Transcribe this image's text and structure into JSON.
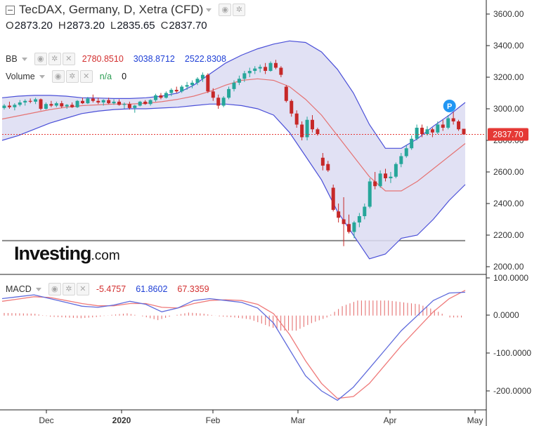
{
  "header": {
    "title": "TecDAX, Germany, D, Xetra (CFD)",
    "ohlc": [
      {
        "key": "O",
        "value": "2873.20"
      },
      {
        "key": "H",
        "value": "2873.20"
      },
      {
        "key": "L",
        "value": "2835.65"
      },
      {
        "key": "C",
        "value": "2837.70"
      }
    ]
  },
  "indicators": {
    "bb": {
      "name": "BB",
      "v1": "2780.8510",
      "v2": "3038.8712",
      "v3": "2522.8308"
    },
    "volume": {
      "name": "Volume",
      "v1": "n/a",
      "v2": "0"
    },
    "macd": {
      "name": "MACD",
      "v1": "-5.4757",
      "v2": "61.8602",
      "v3": "67.3359"
    }
  },
  "logo": {
    "main": "Investing",
    "suffix": ".com"
  },
  "price_badge": "2837.70",
  "marker_label": "P",
  "colors": {
    "up": "#26a69a",
    "down": "#c62828",
    "bb_band": "#4a4fd8",
    "bb_fill": "#dcdcf2",
    "bb_mid": "#e57373",
    "macd_line": "#5f6bdc",
    "signal_line": "#ef7a7a",
    "hist": "#e57373",
    "last_price": "#e53935",
    "marker": "#2196f3"
  },
  "chart_data": [
    {
      "type": "candlestick",
      "title": "TecDAX, Germany, D, Xetra (CFD)",
      "x_tick_labels": [
        "Dec",
        "2020",
        "Feb",
        "Mar",
        "Apr",
        "May"
      ],
      "y_tick_labels": [
        "3600.00",
        "3400.00",
        "3200.00",
        "3000.00",
        "2800.00",
        "2600.00",
        "2400.00",
        "2200.00",
        "2000.00"
      ],
      "ylim": [
        1985,
        3650
      ],
      "last_price": 2837.7,
      "support_level": 2165,
      "grid": false,
      "candles": [
        {
          "o": 3005,
          "h": 3030,
          "l": 2995,
          "c": 3020
        },
        {
          "o": 3020,
          "h": 3045,
          "l": 3000,
          "c": 3010
        },
        {
          "o": 3010,
          "h": 3035,
          "l": 2990,
          "c": 3025
        },
        {
          "o": 3025,
          "h": 3055,
          "l": 3015,
          "c": 3040
        },
        {
          "o": 3040,
          "h": 3060,
          "l": 3020,
          "c": 3050
        },
        {
          "o": 3050,
          "h": 3065,
          "l": 3035,
          "c": 3045
        },
        {
          "o": 3045,
          "h": 3070,
          "l": 3030,
          "c": 3060
        },
        {
          "o": 3060,
          "h": 3065,
          "l": 2990,
          "c": 3000
        },
        {
          "o": 3000,
          "h": 3040,
          "l": 2995,
          "c": 3030
        },
        {
          "o": 3030,
          "h": 3050,
          "l": 3010,
          "c": 3020
        },
        {
          "o": 3020,
          "h": 3045,
          "l": 3010,
          "c": 3035
        },
        {
          "o": 3035,
          "h": 3050,
          "l": 3005,
          "c": 3015
        },
        {
          "o": 3015,
          "h": 3030,
          "l": 3000,
          "c": 3025
        },
        {
          "o": 3025,
          "h": 3040,
          "l": 3005,
          "c": 3010
        },
        {
          "o": 3010,
          "h": 3055,
          "l": 3005,
          "c": 3050
        },
        {
          "o": 3050,
          "h": 3070,
          "l": 3030,
          "c": 3035
        },
        {
          "o": 3035,
          "h": 3075,
          "l": 3030,
          "c": 3065
        },
        {
          "o": 3065,
          "h": 3090,
          "l": 3040,
          "c": 3050
        },
        {
          "o": 3050,
          "h": 3070,
          "l": 3030,
          "c": 3040
        },
        {
          "o": 3040,
          "h": 3060,
          "l": 3020,
          "c": 3055
        },
        {
          "o": 3055,
          "h": 3070,
          "l": 3030,
          "c": 3035
        },
        {
          "o": 3035,
          "h": 3060,
          "l": 3025,
          "c": 3045
        },
        {
          "o": 3045,
          "h": 3060,
          "l": 3020,
          "c": 3025
        },
        {
          "o": 3025,
          "h": 3040,
          "l": 3000,
          "c": 3030
        },
        {
          "o": 3030,
          "h": 3045,
          "l": 2995,
          "c": 3005
        },
        {
          "o": 3005,
          "h": 3025,
          "l": 2975,
          "c": 3020
        },
        {
          "o": 3020,
          "h": 3050,
          "l": 3015,
          "c": 3045
        },
        {
          "o": 3045,
          "h": 3055,
          "l": 3025,
          "c": 3030
        },
        {
          "o": 3030,
          "h": 3060,
          "l": 3020,
          "c": 3055
        },
        {
          "o": 3055,
          "h": 3095,
          "l": 3045,
          "c": 3085
        },
        {
          "o": 3085,
          "h": 3100,
          "l": 3060,
          "c": 3070
        },
        {
          "o": 3070,
          "h": 3110,
          "l": 3065,
          "c": 3100
        },
        {
          "o": 3100,
          "h": 3130,
          "l": 3080,
          "c": 3120
        },
        {
          "o": 3120,
          "h": 3140,
          "l": 3100,
          "c": 3110
        },
        {
          "o": 3110,
          "h": 3150,
          "l": 3100,
          "c": 3140
        },
        {
          "o": 3140,
          "h": 3170,
          "l": 3120,
          "c": 3150
        },
        {
          "o": 3150,
          "h": 3180,
          "l": 3130,
          "c": 3165
        },
        {
          "o": 3165,
          "h": 3200,
          "l": 3150,
          "c": 3190
        },
        {
          "o": 3190,
          "h": 3230,
          "l": 3170,
          "c": 3215
        },
        {
          "o": 3215,
          "h": 3225,
          "l": 3100,
          "c": 3110
        },
        {
          "o": 3110,
          "h": 3130,
          "l": 3050,
          "c": 3070
        },
        {
          "o": 3070,
          "h": 3090,
          "l": 3000,
          "c": 3020
        },
        {
          "o": 3020,
          "h": 3080,
          "l": 3010,
          "c": 3070
        },
        {
          "o": 3070,
          "h": 3140,
          "l": 3060,
          "c": 3125
        },
        {
          "o": 3125,
          "h": 3180,
          "l": 3110,
          "c": 3165
        },
        {
          "o": 3165,
          "h": 3210,
          "l": 3150,
          "c": 3190
        },
        {
          "o": 3190,
          "h": 3240,
          "l": 3170,
          "c": 3225
        },
        {
          "o": 3225,
          "h": 3260,
          "l": 3200,
          "c": 3240
        },
        {
          "o": 3240,
          "h": 3270,
          "l": 3220,
          "c": 3255
        },
        {
          "o": 3255,
          "h": 3280,
          "l": 3230,
          "c": 3265
        },
        {
          "o": 3265,
          "h": 3290,
          "l": 3220,
          "c": 3240
        },
        {
          "o": 3240,
          "h": 3300,
          "l": 3235,
          "c": 3290
        },
        {
          "o": 3290,
          "h": 3310,
          "l": 3250,
          "c": 3260
        },
        {
          "o": 3260,
          "h": 3270,
          "l": 3200,
          "c": 3215
        },
        {
          "o": 3140,
          "h": 3150,
          "l": 3040,
          "c": 3050
        },
        {
          "o": 3050,
          "h": 3060,
          "l": 2950,
          "c": 2970
        },
        {
          "o": 2970,
          "h": 2990,
          "l": 2880,
          "c": 2900
        },
        {
          "o": 2900,
          "h": 2920,
          "l": 2800,
          "c": 2820
        },
        {
          "o": 2820,
          "h": 2950,
          "l": 2800,
          "c": 2930
        },
        {
          "o": 2930,
          "h": 2960,
          "l": 2850,
          "c": 2870
        },
        {
          "o": 2870,
          "h": 2880,
          "l": 2830,
          "c": 2840
        },
        {
          "o": 2690,
          "h": 2720,
          "l": 2610,
          "c": 2640
        },
        {
          "o": 2650,
          "h": 2670,
          "l": 2600,
          "c": 2610
        },
        {
          "o": 2500,
          "h": 2520,
          "l": 2350,
          "c": 2360
        },
        {
          "o": 2350,
          "h": 2400,
          "l": 2280,
          "c": 2310
        },
        {
          "o": 2300,
          "h": 2440,
          "l": 2130,
          "c": 2270
        },
        {
          "o": 2270,
          "h": 2330,
          "l": 2210,
          "c": 2220
        },
        {
          "o": 2220,
          "h": 2290,
          "l": 2180,
          "c": 2280
        },
        {
          "o": 2280,
          "h": 2340,
          "l": 2250,
          "c": 2320
        },
        {
          "o": 2320,
          "h": 2400,
          "l": 2300,
          "c": 2380
        },
        {
          "o": 2380,
          "h": 2560,
          "l": 2370,
          "c": 2540
        },
        {
          "o": 2540,
          "h": 2600,
          "l": 2490,
          "c": 2510
        },
        {
          "o": 2510,
          "h": 2610,
          "l": 2500,
          "c": 2590
        },
        {
          "o": 2590,
          "h": 2620,
          "l": 2540,
          "c": 2560
        },
        {
          "o": 2560,
          "h": 2600,
          "l": 2530,
          "c": 2570
        },
        {
          "o": 2570,
          "h": 2660,
          "l": 2560,
          "c": 2650
        },
        {
          "o": 2650,
          "h": 2720,
          "l": 2630,
          "c": 2700
        },
        {
          "o": 2700,
          "h": 2770,
          "l": 2690,
          "c": 2750
        },
        {
          "o": 2750,
          "h": 2830,
          "l": 2740,
          "c": 2810
        },
        {
          "o": 2810,
          "h": 2900,
          "l": 2800,
          "c": 2880
        },
        {
          "o": 2880,
          "h": 2900,
          "l": 2820,
          "c": 2840
        },
        {
          "o": 2840,
          "h": 2890,
          "l": 2830,
          "c": 2870
        },
        {
          "o": 2870,
          "h": 2880,
          "l": 2820,
          "c": 2850
        },
        {
          "o": 2850,
          "h": 2920,
          "l": 2840,
          "c": 2900
        },
        {
          "o": 2900,
          "h": 2930,
          "l": 2860,
          "c": 2880
        },
        {
          "o": 2880,
          "h": 2960,
          "l": 2870,
          "c": 2940
        },
        {
          "o": 2940,
          "h": 2980,
          "l": 2900,
          "c": 2920
        },
        {
          "o": 2920,
          "h": 2930,
          "l": 2860,
          "c": 2870
        },
        {
          "o": 2873.2,
          "h": 2873.2,
          "l": 2835.65,
          "c": 2837.7
        }
      ],
      "bollinger": {
        "upper": [
          3070,
          3080,
          3085,
          3085,
          3080,
          3070,
          3068,
          3065,
          3065,
          3070,
          3080,
          3100,
          3150,
          3220,
          3290,
          3340,
          3380,
          3410,
          3430,
          3420,
          3360,
          3250,
          3100,
          2900,
          2750,
          2750,
          2810,
          2890,
          2960,
          3040
        ],
        "middle": [
          2935,
          2955,
          2975,
          2995,
          3010,
          3020,
          3025,
          3030,
          3030,
          3035,
          3045,
          3060,
          3080,
          3110,
          3150,
          3180,
          3190,
          3180,
          3140,
          3060,
          2960,
          2830,
          2700,
          2570,
          2480,
          2480,
          2540,
          2620,
          2700,
          2780
        ],
        "lower": [
          2800,
          2830,
          2870,
          2910,
          2940,
          2970,
          2985,
          2995,
          3000,
          3000,
          3005,
          3010,
          3020,
          3030,
          3030,
          3020,
          3000,
          2960,
          2850,
          2700,
          2550,
          2350,
          2200,
          2050,
          2080,
          2180,
          2200,
          2300,
          2420,
          2520
        ]
      }
    },
    {
      "type": "line",
      "title": "MACD",
      "y_tick_labels": [
        "100.0000",
        "0.0000",
        "-100.0000",
        "-200.0000"
      ],
      "ylim": [
        -232,
        108
      ],
      "series": [
        {
          "name": "MACD",
          "values": [
            45,
            50,
            55,
            45,
            35,
            25,
            22,
            28,
            38,
            30,
            10,
            20,
            40,
            45,
            40,
            35,
            20,
            -20,
            -90,
            -160,
            -200,
            -225,
            -190,
            -140,
            -90,
            -40,
            0,
            40,
            60,
            62
          ]
        },
        {
          "name": "Signal",
          "values": [
            38,
            44,
            50,
            48,
            40,
            32,
            26,
            26,
            32,
            32,
            22,
            20,
            32,
            40,
            42,
            40,
            30,
            5,
            -50,
            -120,
            -180,
            -220,
            -215,
            -180,
            -130,
            -80,
            -35,
            10,
            45,
            67
          ]
        }
      ],
      "histogram": [
        7,
        6,
        5,
        -3,
        -5,
        -7,
        -4,
        2,
        6,
        -2,
        -12,
        0,
        8,
        5,
        -2,
        -5,
        -10,
        -25,
        -40,
        -40,
        -20,
        -5,
        25,
        40,
        40,
        40,
        35,
        30,
        15,
        -5
      ]
    }
  ]
}
